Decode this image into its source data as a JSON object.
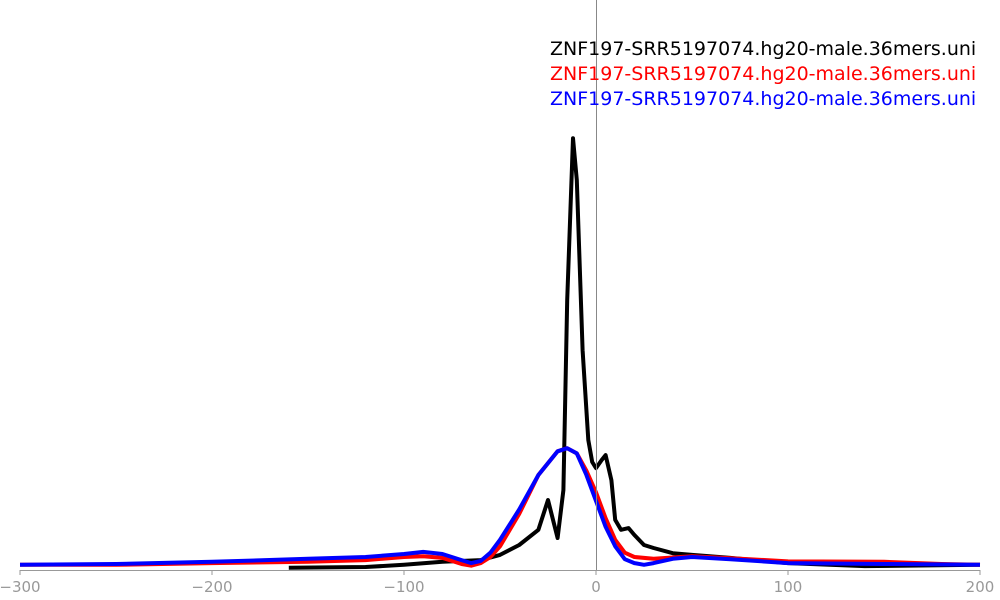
{
  "chart_data": {
    "type": "line",
    "title": "",
    "xlabel": "",
    "ylabel": "",
    "xlim": [
      -300,
      200
    ],
    "ylim": [
      0,
      132
    ],
    "x_ticks": [
      "-300",
      "-200",
      "-100",
      "0",
      "100",
      "200"
    ],
    "y_ticks": [],
    "grid": false,
    "legend_position": "top-right",
    "series": [
      {
        "name": "ZNF197-SRR5197074.hg20-male.36mers.uni",
        "color": "#000000",
        "x": [
          -160,
          -120,
          -100,
          -80,
          -60,
          -50,
          -40,
          -30,
          -25,
          -20,
          -17,
          -15,
          -12,
          -10,
          -7,
          -4,
          -2,
          0,
          3,
          5,
          8,
          10,
          13,
          17,
          20,
          25,
          30,
          40,
          50,
          70,
          100,
          140,
          200
        ],
        "y": [
          0.5,
          0.7,
          1.2,
          1.9,
          2.3,
          3.5,
          5.8,
          9.3,
          16.2,
          7.4,
          18.5,
          62.5,
          100,
          90.3,
          50.9,
          30.1,
          25.0,
          23.6,
          25.5,
          26.6,
          20.8,
          11.6,
          9.3,
          9.7,
          8.1,
          5.8,
          5.1,
          3.9,
          3.5,
          2.8,
          1.6,
          0.9,
          1.2
        ]
      },
      {
        "name": "ZNF197-SRR5197074.hg20-male.36mers.uni",
        "color": "#ff0000",
        "x": [
          -300,
          -250,
          -200,
          -150,
          -120,
          -100,
          -90,
          -80,
          -70,
          -65,
          -60,
          -55,
          -50,
          -40,
          -30,
          -20,
          -15,
          -10,
          -5,
          0,
          5,
          10,
          15,
          20,
          30,
          50,
          80,
          100,
          150,
          180,
          200
        ],
        "y": [
          1.2,
          1.2,
          1.6,
          1.9,
          2.3,
          3.0,
          3.2,
          2.8,
          1.4,
          1.0,
          1.6,
          3.0,
          5.5,
          13,
          22,
          27.5,
          28.2,
          27,
          23,
          18,
          12,
          7,
          4,
          3,
          2.6,
          3.2,
          2.5,
          2.0,
          1.9,
          1.4,
          1.2
        ]
      },
      {
        "name": "ZNF197-SRR5197074.hg20-male.36mers.uni",
        "color": "#0000ff",
        "x": [
          -300,
          -250,
          -200,
          -150,
          -120,
          -100,
          -90,
          -80,
          -70,
          -65,
          -60,
          -55,
          -50,
          -40,
          -30,
          -20,
          -15,
          -10,
          -5,
          0,
          5,
          10,
          15,
          20,
          25,
          30,
          40,
          50,
          70,
          100,
          150,
          200
        ],
        "y": [
          1.2,
          1.4,
          1.9,
          2.6,
          3.0,
          3.7,
          4.2,
          3.7,
          2.3,
          1.6,
          2.1,
          4,
          7,
          14,
          22,
          27.5,
          28.2,
          27,
          22,
          16,
          10,
          5.5,
          2.5,
          1.6,
          1.2,
          1.6,
          2.6,
          3.0,
          2.5,
          1.6,
          1.4,
          1.2
        ]
      }
    ]
  }
}
